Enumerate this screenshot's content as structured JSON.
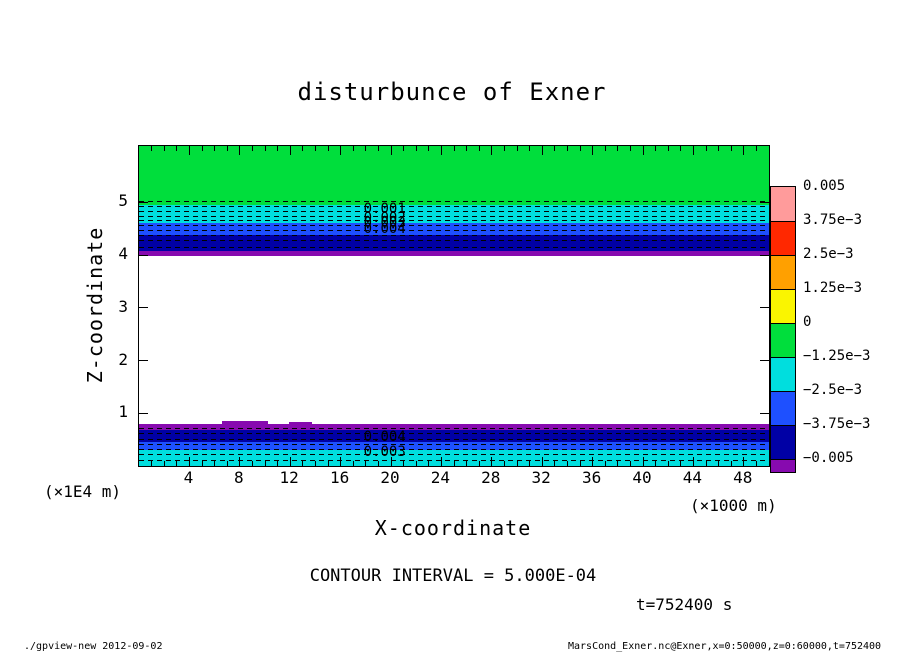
{
  "window": {
    "background": "#ffffff"
  },
  "chart_data": {
    "type": "heatmap",
    "title": "disturbunce of Exner",
    "xlabel": "X-coordinate",
    "ylabel": "Z-coordinate",
    "x_unit_label": "(×1000 m)",
    "y_unit_label": "(×1E4 m)",
    "xlim": [
      0,
      50
    ],
    "zlim": [
      0,
      6.07
    ],
    "x_ticks": [
      4,
      8,
      12,
      16,
      20,
      24,
      28,
      32,
      36,
      40,
      44,
      48
    ],
    "y_ticks": [
      1,
      2,
      3,
      4,
      5
    ],
    "contour_interval": "CONTOUR INTERVAL = 5.000E-04",
    "time_label": "t=752400 s",
    "colorbar": {
      "tick_labels": [
        "0.005",
        "3.75e−3",
        "2.5e−3",
        "1.25e−3",
        "0",
        "−1.25e−3",
        "−2.5e−3",
        "−3.75e−3",
        "−0.005"
      ],
      "segment_colors": [
        "#ff9b9b",
        "#ff2800",
        "#ffa000",
        "#faf500",
        "#00de3c",
        "#00dede",
        "#1e50ff",
        "#0000a5"
      ],
      "underflow_color": "#870aaf"
    },
    "bands": [
      {
        "z_top": 6.07,
        "z_bottom": 4.95,
        "color": "#00de3c"
      },
      {
        "z_top": 4.95,
        "z_bottom": 4.61,
        "color": "#00dede"
      },
      {
        "z_top": 4.61,
        "z_bottom": 4.38,
        "color": "#1e50ff"
      },
      {
        "z_top": 4.38,
        "z_bottom": 4.08,
        "color": "#0000a5"
      },
      {
        "z_top": 4.08,
        "z_bottom": 3.99,
        "color": "#870aaf"
      },
      {
        "z_top": 0.79,
        "z_bottom": 0.69,
        "color": "#870aaf"
      },
      {
        "z_top": 0.69,
        "z_bottom": 0.46,
        "color": "#0000a5"
      },
      {
        "z_top": 0.46,
        "z_bottom": 0.3,
        "color": "#1e50ff"
      },
      {
        "z_top": 0.3,
        "z_bottom": 0.0,
        "color": "#00dede"
      }
    ],
    "bumps": [
      {
        "x1": 6.6,
        "x2": 10.2,
        "z_top": 0.86,
        "z_bottom": 0.79,
        "color": "#870aaf"
      },
      {
        "x1": 11.9,
        "x2": 13.7,
        "z_top": 0.84,
        "z_bottom": 0.79,
        "color": "#870aaf"
      }
    ],
    "contour_lines_z": [
      5.02,
      4.93,
      4.84,
      4.75,
      4.66,
      4.57,
      4.48,
      4.39,
      4.28,
      4.16,
      0.72,
      0.62,
      0.52,
      0.42,
      0.32,
      0.22,
      0.12
    ],
    "contour_labels": [
      {
        "x": 19.5,
        "z": 4.88,
        "text": "0.001"
      },
      {
        "x": 19.5,
        "z": 4.7,
        "text": "0.002"
      },
      {
        "x": 19.5,
        "z": 4.6,
        "text": "0.003"
      },
      {
        "x": 19.5,
        "z": 4.5,
        "text": "0.004"
      },
      {
        "x": 19.5,
        "z": 0.55,
        "text": "0.004"
      },
      {
        "x": 19.5,
        "z": 0.26,
        "text": "0.003"
      }
    ]
  },
  "footer": {
    "left": "./gpview-new  2012-09-02",
    "right": "MarsCond_Exner.nc@Exner,x=0:50000,z=0:60000,t=752400"
  }
}
